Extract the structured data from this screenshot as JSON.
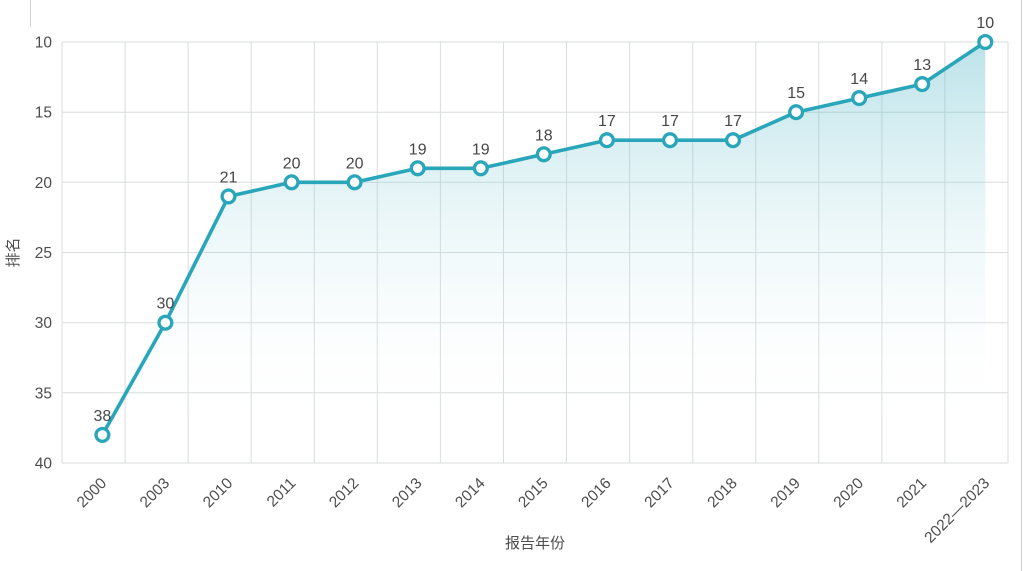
{
  "page": {
    "background": "#ffffff"
  },
  "chart_data": {
    "type": "line",
    "title": "",
    "categories": [
      "2000",
      "2003",
      "2010",
      "2011",
      "2012",
      "2013",
      "2014",
      "2015",
      "2016",
      "2017",
      "2018",
      "2019",
      "2020",
      "2021",
      "2022—2023"
    ],
    "values": [
      38,
      30,
      21,
      20,
      20,
      19,
      19,
      18,
      17,
      17,
      17,
      15,
      14,
      13,
      10
    ],
    "data_labels": [
      "38",
      "30",
      "21",
      "20",
      "20",
      "19",
      "19",
      "18",
      "17",
      "17",
      "17",
      "15",
      "14",
      "13",
      "10"
    ],
    "xlabel": "报告年份",
    "ylabel": "排名",
    "y_ticks": [
      10,
      15,
      20,
      25,
      30,
      35,
      40
    ],
    "ylim": [
      10,
      40
    ],
    "y_axis_inverted": true,
    "grid": "both",
    "legend": "none",
    "colors": {
      "line": "#29a6ba",
      "marker_fill": "#ffffff",
      "area_top": "rgba(41,166,186,0.32)",
      "area_bottom": "rgba(255,255,255,0)",
      "gridline": "#d9dddd",
      "tick_text": "#4d4d4d",
      "label_text": "#474747"
    }
  }
}
